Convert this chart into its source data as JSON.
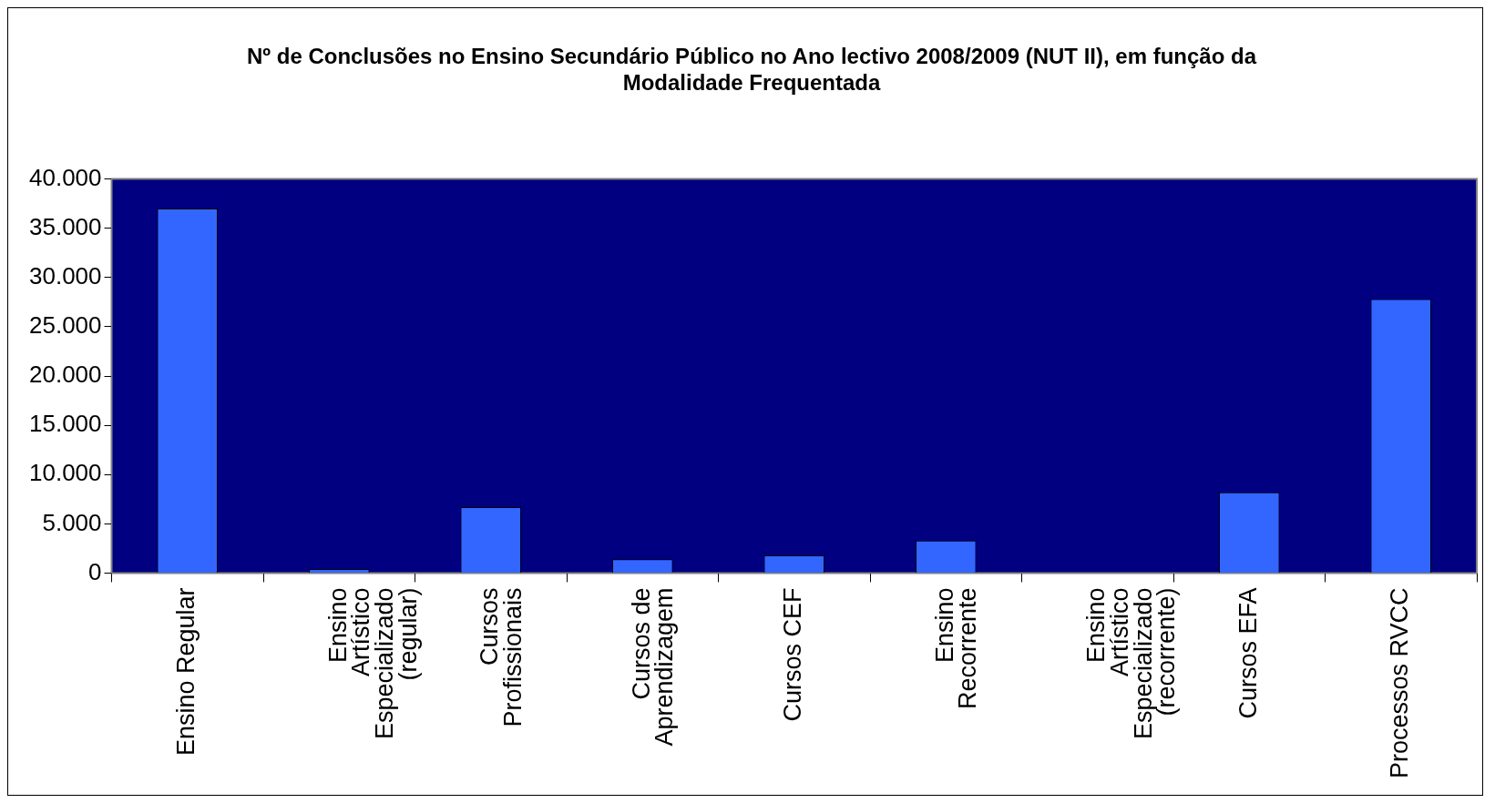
{
  "chart_data": {
    "type": "bar",
    "title": "Nº de Conclusões no Ensino Secundário Público no Ano lectivo 2008/2009 (NUT II), em função da Modalidade Frequentada",
    "categories": [
      "Ensino Regular",
      "Ensino Artístico Especializado (regular)",
      "Cursos Profissionais",
      "Cursos de Aprendizagem",
      "Cursos CEF",
      "Ensino Recorrente",
      "Ensino Artístico Especializado (recorrente)",
      "Cursos EFA",
      "Processos RVCC"
    ],
    "values": [
      37000,
      400,
      6700,
      1400,
      1800,
      3300,
      0,
      8200,
      27800
    ],
    "color": "#3366ff",
    "ylim": [
      0,
      40000
    ],
    "yticks": [
      {
        "value": 0,
        "label": "0"
      },
      {
        "value": 5000,
        "label": "5.000"
      },
      {
        "value": 10000,
        "label": "10.000"
      },
      {
        "value": 15000,
        "label": "15.000"
      },
      {
        "value": 20000,
        "label": "20.000"
      },
      {
        "value": 25000,
        "label": "25.000"
      },
      {
        "value": 30000,
        "label": "30.000"
      },
      {
        "value": 35000,
        "label": "35.000"
      },
      {
        "value": 40000,
        "label": "40.000"
      }
    ],
    "grid": false,
    "legend": false
  }
}
